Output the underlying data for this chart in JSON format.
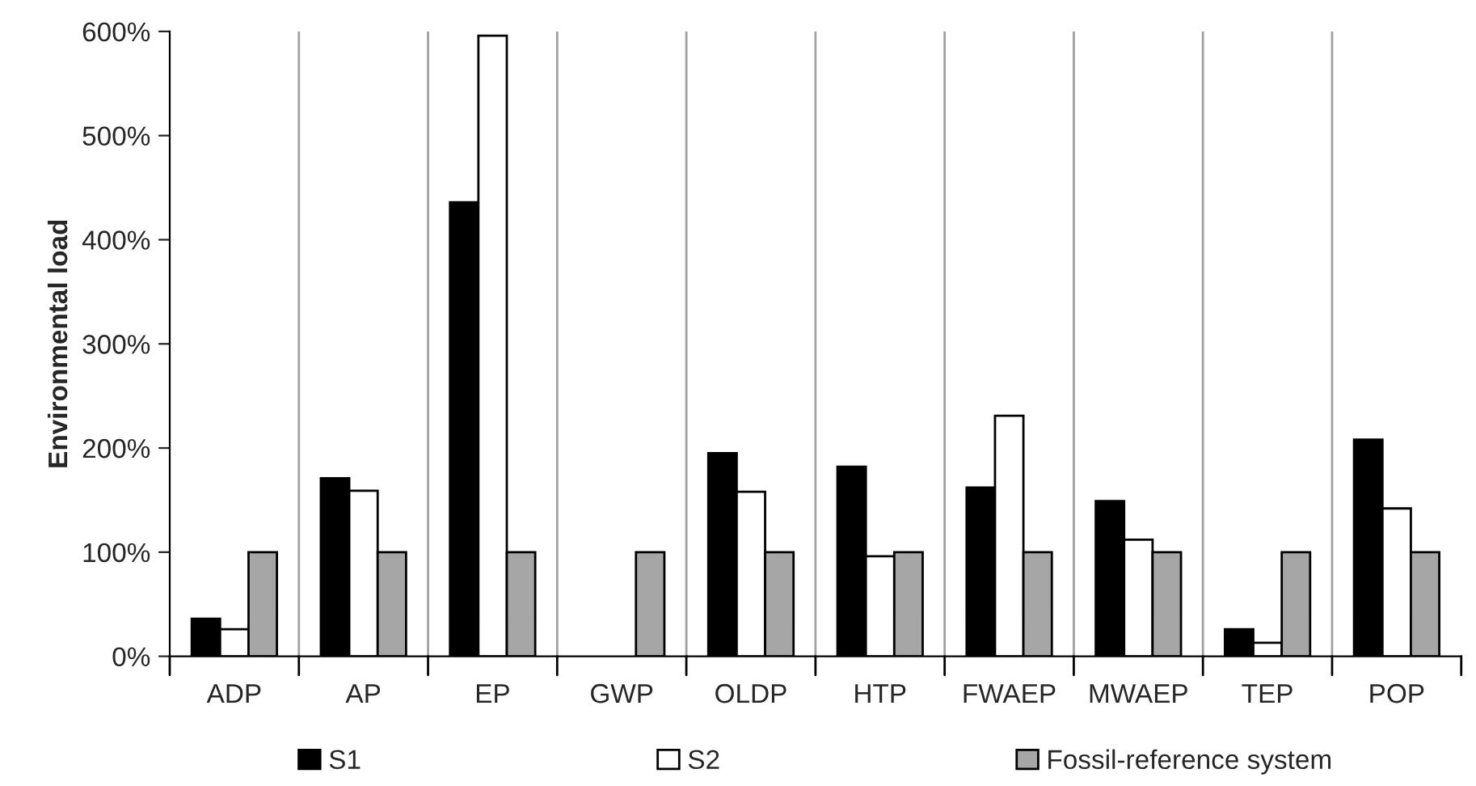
{
  "chart_data": {
    "type": "bar",
    "ylabel": "Environmental load",
    "categories": [
      "ADP",
      "AP",
      "EP",
      "GWP",
      "OLDP",
      "HTP",
      "FWAEP",
      "MWAEP",
      "TEP",
      "POP"
    ],
    "series": [
      {
        "name": "S1",
        "color": "#000000",
        "values": [
          36,
          171,
          436,
          null,
          195,
          182,
          162,
          149,
          26,
          208
        ]
      },
      {
        "name": "S2",
        "color": "#ffffff",
        "values": [
          26,
          159,
          596,
          null,
          158,
          96,
          231,
          112,
          13,
          142
        ]
      },
      {
        "name": "Fossil-reference system",
        "color": "#a6a6a6",
        "values": [
          100,
          100,
          100,
          100,
          100,
          100,
          100,
          100,
          100,
          100
        ]
      }
    ],
    "ylim": [
      0,
      600
    ],
    "yticks": [
      {
        "value": 0,
        "label": "0%"
      },
      {
        "value": 100,
        "label": "100%"
      },
      {
        "value": 200,
        "label": "200%"
      },
      {
        "value": 300,
        "label": "300%"
      },
      {
        "value": 400,
        "label": "400%"
      },
      {
        "value": 500,
        "label": "500%"
      },
      {
        "value": 600,
        "label": "600%"
      }
    ],
    "grid": "x",
    "legend": "bottom"
  }
}
